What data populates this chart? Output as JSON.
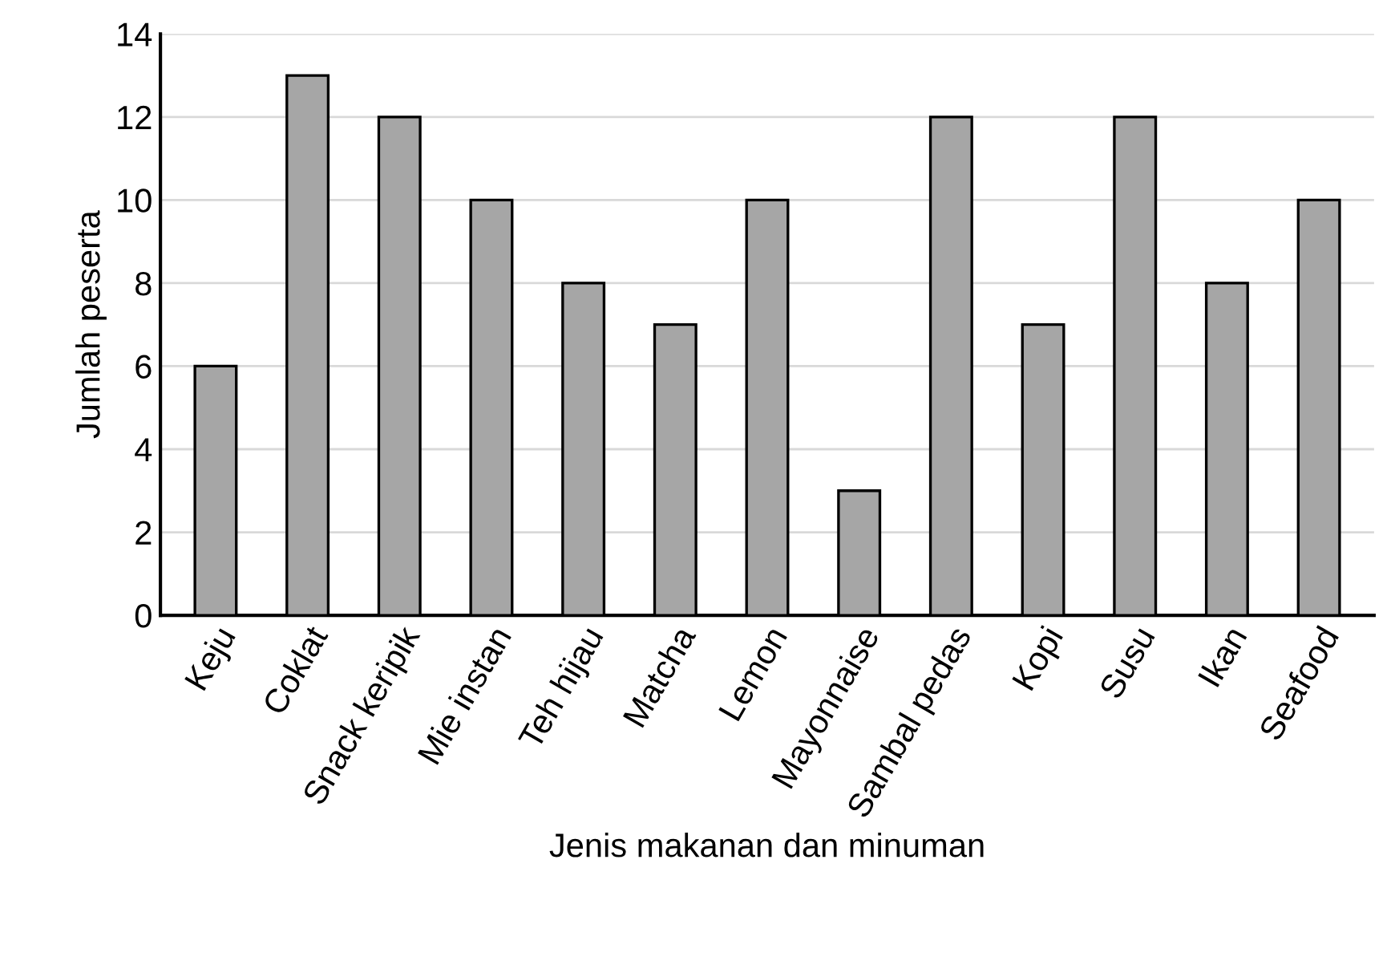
{
  "chart_data": {
    "type": "bar",
    "xlabel": "Jenis makanan dan minuman",
    "ylabel": "Jumlah peserta",
    "categories": [
      "Keju",
      "Coklat",
      "Snack keripik",
      "Mie instan",
      "Teh hijau",
      "Matcha",
      "Lemon",
      "Mayonnaise",
      "Sambal pedas",
      "Kopi",
      "Susu",
      "Ikan",
      "Seafood"
    ],
    "values": [
      6,
      13,
      12,
      10,
      8,
      7,
      10,
      3,
      12,
      7,
      12,
      8,
      10
    ],
    "color": "#a6a6a6",
    "ylim": [
      0,
      14
    ],
    "yticks": [
      0,
      2,
      4,
      6,
      8,
      10,
      12,
      14
    ],
    "grid": "y",
    "legend": false
  }
}
